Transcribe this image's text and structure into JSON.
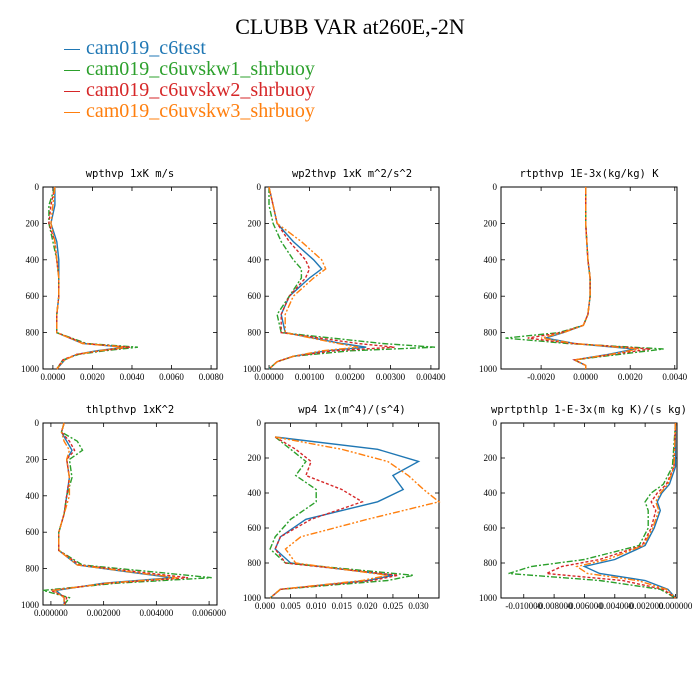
{
  "title": "CLUBB VAR at260E,-2N",
  "legend": [
    {
      "label": "cam019_c6test",
      "color": "#1f77b4"
    },
    {
      "label": "cam019_c6uvskw1_shrbuoy",
      "color": "#2ca02c"
    },
    {
      "label": "cam019_c6uvskw2_shrbuoy",
      "color": "#d62728"
    },
    {
      "label": "cam019_c6uvskw3_shrbuoy",
      "color": "#ff7f0e"
    }
  ],
  "chart_data": [
    {
      "type": "line",
      "title": "wpthvp  1xK m/s",
      "ylim": [
        1000,
        0
      ],
      "yticks": [
        0,
        200,
        400,
        600,
        800,
        1000
      ],
      "xlim": [
        -0.0005,
        0.0083
      ],
      "xticks": [
        0,
        0.002,
        0.004,
        0.006,
        0.008
      ],
      "xtick_labels": [
        "0.0000",
        "0.0020",
        "0.0040",
        "0.0060",
        "0.0080"
      ],
      "y": [
        0,
        100,
        200,
        300,
        400,
        500,
        600,
        700,
        800,
        860,
        880,
        900,
        920,
        950,
        1000
      ],
      "series": [
        {
          "values": [
            0.0001,
            0.0001,
            -0.0001,
            0.0002,
            0.0003,
            0.0003,
            0.0003,
            0.0002,
            0.0002,
            0.0015,
            0.0036,
            0.0022,
            0.0012,
            0.0006,
            0.0002
          ]
        },
        {
          "values": [
            0.0001,
            -0.0002,
            -0.0002,
            0.0,
            0.0002,
            0.0003,
            0.0003,
            0.0002,
            0.0002,
            0.0017,
            0.0043,
            0.0026,
            0.0013,
            0.0005,
            0.0002
          ]
        },
        {
          "values": [
            0.0001,
            -0.0001,
            -0.0002,
            0.0001,
            0.0002,
            0.0003,
            0.0003,
            0.0002,
            0.0002,
            0.0016,
            0.0039,
            0.0024,
            0.0012,
            0.0005,
            0.0002
          ]
        },
        {
          "values": [
            0.0001,
            0.0,
            -0.0001,
            0.0001,
            0.0002,
            0.0003,
            0.0003,
            0.0002,
            0.0002,
            0.0015,
            0.0037,
            0.0023,
            0.0012,
            0.0006,
            0.0002
          ]
        }
      ]
    },
    {
      "type": "line",
      "title": "wp2thvp  1xK m^2/s^2",
      "ylim": [
        1000,
        0
      ],
      "yticks": [
        0,
        200,
        400,
        600,
        800,
        1000
      ],
      "xlim": [
        -0.0001,
        0.0042
      ],
      "xticks": [
        0,
        0.001,
        0.002,
        0.003,
        0.004
      ],
      "xtick_labels": [
        "0.00000",
        "0.00100",
        "0.00200",
        "0.00300",
        "0.00400"
      ],
      "y": [
        0,
        100,
        200,
        300,
        400,
        450,
        500,
        600,
        700,
        800,
        860,
        880,
        900,
        930,
        960,
        1000
      ],
      "series": [
        {
          "values": [
            0.0,
            0.0001,
            0.0002,
            0.0006,
            0.0011,
            0.0013,
            0.001,
            0.0005,
            0.0003,
            0.0004,
            0.0018,
            0.0024,
            0.0014,
            0.0006,
            0.0002,
            0.0
          ]
        },
        {
          "values": [
            0.0,
            0.0,
            0.0001,
            0.0003,
            0.0006,
            0.0008,
            0.0008,
            0.0005,
            0.0002,
            0.0003,
            0.0028,
            0.0041,
            0.002,
            0.0006,
            0.0002,
            0.0
          ]
        },
        {
          "values": [
            0.0,
            0.0001,
            0.0002,
            0.0005,
            0.0009,
            0.001,
            0.0009,
            0.0005,
            0.0003,
            0.0003,
            0.0022,
            0.0031,
            0.0016,
            0.0006,
            0.0002,
            0.0
          ]
        },
        {
          "values": [
            0.0,
            0.0001,
            0.0002,
            0.0008,
            0.0013,
            0.0014,
            0.0011,
            0.0006,
            0.0004,
            0.0004,
            0.0017,
            0.0022,
            0.0013,
            0.0006,
            0.0002,
            0.0
          ]
        }
      ]
    },
    {
      "type": "line",
      "title": "rtpthvp  1E-3x(kg/kg) K",
      "ylim": [
        1000,
        0
      ],
      "yticks": [
        0,
        200,
        400,
        600,
        800,
        1000
      ],
      "xlim": [
        -0.0038,
        0.0041
      ],
      "xticks": [
        -0.002,
        0,
        0.002,
        0.004
      ],
      "xtick_labels": [
        "-0.0020",
        "0.0000",
        "0.0020",
        "0.0040"
      ],
      "y": [
        0,
        200,
        400,
        500,
        600,
        700,
        760,
        800,
        830,
        860,
        890,
        920,
        950,
        980,
        1000
      ],
      "series": [
        {
          "values": [
            0.0,
            0.0,
            0.0001,
            0.0002,
            0.0002,
            0.0001,
            -0.0001,
            -0.001,
            -0.0018,
            -0.0005,
            0.0022,
            0.001,
            -0.0005,
            0.0,
            0.0
          ]
        },
        {
          "values": [
            0.0,
            0.0,
            0.0001,
            0.0002,
            0.0002,
            0.0001,
            -0.0001,
            -0.0012,
            -0.0036,
            -0.0008,
            0.0035,
            0.0015,
            -0.0005,
            0.0,
            0.0
          ]
        },
        {
          "values": [
            0.0,
            0.0,
            0.0001,
            0.0002,
            0.0002,
            0.0001,
            -0.0001,
            -0.0011,
            -0.0026,
            -0.0006,
            0.0029,
            0.0012,
            -0.0005,
            0.0,
            0.0
          ]
        },
        {
          "values": [
            0.0,
            0.0,
            0.0001,
            0.0002,
            0.0002,
            0.0001,
            -0.0001,
            -0.001,
            -0.002,
            -0.0005,
            0.0024,
            0.0011,
            -0.0005,
            0.0,
            0.0
          ]
        }
      ]
    },
    {
      "type": "line",
      "title": "thlpthvp  1xK^2",
      "ylim": [
        1000,
        0
      ],
      "yticks": [
        0,
        200,
        400,
        600,
        800,
        1000
      ],
      "xlim": [
        -0.0003,
        0.0063
      ],
      "xticks": [
        0,
        0.002,
        0.004,
        0.006
      ],
      "xtick_labels": [
        "0.000000",
        "0.002000",
        "0.004000",
        "0.006000"
      ],
      "y": [
        0,
        50,
        100,
        150,
        200,
        300,
        400,
        500,
        600,
        700,
        780,
        820,
        850,
        880,
        920,
        960,
        1000
      ],
      "series": [
        {
          "values": [
            0.0005,
            0.0004,
            0.0006,
            0.0008,
            0.0006,
            0.0007,
            0.0006,
            0.0005,
            0.0003,
            0.0003,
            0.001,
            0.003,
            0.0046,
            0.002,
            0.0002,
            0.0005,
            0.0005
          ]
        },
        {
          "values": [
            0.0005,
            0.0004,
            0.001,
            0.0012,
            0.0007,
            0.0008,
            0.0006,
            0.0005,
            0.0003,
            0.0003,
            0.0012,
            0.004,
            0.0061,
            0.0025,
            -0.0003,
            0.0007,
            0.0005
          ]
        },
        {
          "values": [
            0.0005,
            0.0004,
            0.0007,
            0.0009,
            0.0006,
            0.0007,
            0.0006,
            0.0005,
            0.0003,
            0.0003,
            0.0011,
            0.0034,
            0.0052,
            0.0022,
            0.0,
            0.0006,
            0.0005
          ]
        },
        {
          "values": [
            0.0005,
            0.0004,
            0.0005,
            0.0007,
            0.0006,
            0.0007,
            0.0007,
            0.0005,
            0.0003,
            0.0003,
            0.001,
            0.0031,
            0.0048,
            0.0021,
            0.0001,
            0.0005,
            0.0005
          ]
        }
      ]
    },
    {
      "type": "line",
      "title": "wp4  1x(m^4)/(s^4)",
      "ylim": [
        1000,
        0
      ],
      "yticks": [
        0,
        200,
        400,
        600,
        800,
        1000
      ],
      "xlim": [
        0,
        0.034
      ],
      "xticks": [
        0,
        0.005,
        0.01,
        0.015,
        0.02,
        0.025,
        0.03
      ],
      "xtick_labels": [
        "0.000",
        "0.005",
        "0.010",
        "0.015",
        "0.020",
        "0.025",
        "0.030"
      ],
      "y": [
        80,
        150,
        220,
        300,
        380,
        450,
        550,
        650,
        720,
        800,
        870,
        900,
        950,
        1000
      ],
      "series": [
        {
          "values": [
            0.002,
            0.022,
            0.03,
            0.025,
            0.027,
            0.022,
            0.008,
            0.003,
            0.002,
            0.005,
            0.025,
            0.02,
            0.003,
            0.001
          ]
        },
        {
          "values": [
            0.002,
            0.005,
            0.008,
            0.006,
            0.01,
            0.01,
            0.005,
            0.002,
            0.001,
            0.004,
            0.029,
            0.024,
            0.003,
            0.001
          ]
        },
        {
          "values": [
            0.002,
            0.006,
            0.009,
            0.008,
            0.015,
            0.019,
            0.009,
            0.003,
            0.002,
            0.004,
            0.026,
            0.021,
            0.003,
            0.001
          ]
        },
        {
          "values": [
            0.002,
            0.015,
            0.024,
            0.028,
            0.031,
            0.034,
            0.02,
            0.007,
            0.004,
            0.006,
            0.024,
            0.019,
            0.003,
            0.001
          ]
        }
      ]
    },
    {
      "type": "line",
      "title": "wprtpthlp  1-E-3x(m kg K)/(s kg)",
      "ylim": [
        1000,
        0
      ],
      "yticks": [
        0,
        200,
        400,
        600,
        800,
        1000
      ],
      "xlim": [
        -0.0115,
        0.0001
      ],
      "xticks": [
        -0.01,
        -0.008,
        -0.006,
        -0.004,
        -0.002,
        0
      ],
      "xtick_labels": [
        "-0.010000",
        "-0.008000",
        "-0.006000",
        "-0.004000",
        "-0.002000",
        "0.000000"
      ],
      "y": [
        0,
        250,
        350,
        400,
        450,
        500,
        600,
        700,
        780,
        820,
        860,
        900,
        950,
        1000
      ],
      "series": [
        {
          "values": [
            0.0,
            0.0,
            -0.0004,
            -0.0009,
            -0.0012,
            -0.001,
            -0.0014,
            -0.002,
            -0.004,
            -0.006,
            -0.005,
            -0.002,
            -0.0005,
            0.0
          ]
        },
        {
          "values": [
            0.0,
            -0.0002,
            -0.0008,
            -0.0016,
            -0.002,
            -0.0018,
            -0.0018,
            -0.0024,
            -0.006,
            -0.0095,
            -0.011,
            -0.005,
            -0.001,
            0.0
          ]
        },
        {
          "values": [
            0.0,
            -0.0001,
            -0.0006,
            -0.0012,
            -0.0016,
            -0.0013,
            -0.0016,
            -0.0022,
            -0.005,
            -0.0075,
            -0.0085,
            -0.0035,
            -0.0008,
            0.0
          ]
        },
        {
          "values": [
            0.0,
            -0.0001,
            -0.0005,
            -0.001,
            -0.0013,
            -0.0011,
            -0.0015,
            -0.0021,
            -0.0045,
            -0.0065,
            -0.0058,
            -0.0025,
            -0.0006,
            0.0
          ]
        }
      ]
    }
  ]
}
